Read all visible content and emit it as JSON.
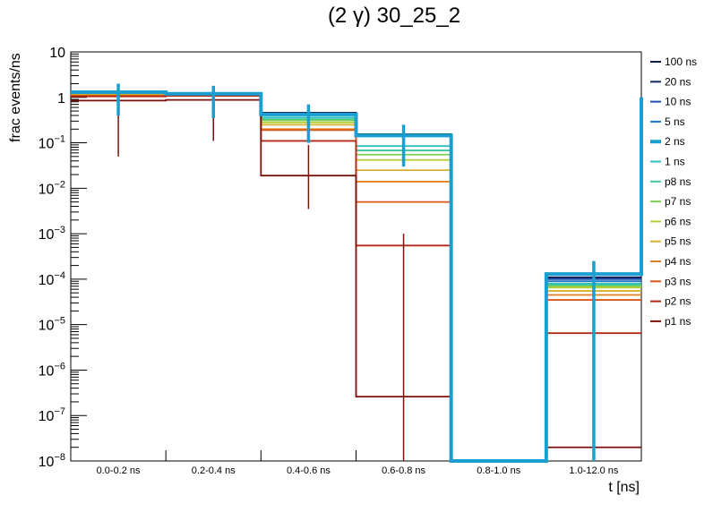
{
  "chart_data": {
    "type": "step-histogram",
    "title": "(2 γ) 30_25_2",
    "xlabel": "t [ns]",
    "ylabel": "frac events/ns",
    "yscale": "log",
    "ylim": [
      1e-08,
      10
    ],
    "y_tick_labels": [
      {
        "exp": -8,
        "text": "10",
        "sup": "−8"
      },
      {
        "exp": -7,
        "text": "10",
        "sup": "−7"
      },
      {
        "exp": -6,
        "text": "10",
        "sup": "−6"
      },
      {
        "exp": -5,
        "text": "10",
        "sup": "−5"
      },
      {
        "exp": -4,
        "text": "10",
        "sup": "−4"
      },
      {
        "exp": -3,
        "text": "10",
        "sup": "−3"
      },
      {
        "exp": -2,
        "text": "10",
        "sup": "−2"
      },
      {
        "exp": -1,
        "text": "10",
        "sup": "−1"
      },
      {
        "exp": 0,
        "text": "1",
        "sup": ""
      },
      {
        "exp": 1,
        "text": "10",
        "sup": ""
      }
    ],
    "categories": [
      "0.0-0.2 ns",
      "0.2-0.4 ns",
      "0.4-0.6 ns",
      "0.6-0.8 ns",
      "0.8-1.0 ns",
      "1.0-12.0 ns"
    ],
    "legend_position": "right",
    "series": [
      {
        "name": "100 ns",
        "color": "#0d1b4f",
        "values": [
          1.25,
          1.2,
          0.46,
          0.155,
          1e-08,
          0.00011
        ]
      },
      {
        "name": "20 ns",
        "color": "#14286e",
        "values": [
          1.25,
          1.2,
          0.45,
          0.152,
          1e-08,
          0.000105
        ]
      },
      {
        "name": "10 ns",
        "color": "#1f4fa8",
        "values": [
          1.25,
          1.2,
          0.44,
          0.15,
          1e-08,
          0.0001
        ]
      },
      {
        "name": "5 ns",
        "color": "#1e77c4",
        "values": [
          1.25,
          1.2,
          0.43,
          0.148,
          1e-08,
          9e-05
        ]
      },
      {
        "name": "2 ns",
        "color": "#1a9fd0",
        "values": [
          1.3,
          1.2,
          0.42,
          0.145,
          1e-08,
          0.00013
        ],
        "highlight": true,
        "err_low": [
          0.4,
          0.35,
          0.1,
          0.03,
          null,
          1e-08
        ],
        "err_high": [
          2.0,
          1.8,
          0.7,
          0.25,
          null,
          0.00025
        ]
      },
      {
        "name": "1 ns",
        "color": "#2fbfbf",
        "values": [
          1.2,
          1.18,
          0.36,
          0.085,
          1e-08,
          8e-05
        ]
      },
      {
        "name": "p8 ns",
        "color": "#3fc79a",
        "values": [
          1.18,
          1.17,
          0.33,
          0.068,
          1e-08,
          7.5e-05
        ]
      },
      {
        "name": "p7 ns",
        "color": "#7fcf55",
        "values": [
          1.17,
          1.16,
          0.31,
          0.055,
          1e-08,
          7e-05
        ]
      },
      {
        "name": "p6 ns",
        "color": "#b7cf3a",
        "values": [
          1.15,
          1.15,
          0.28,
          0.042,
          1e-08,
          6.5e-05
        ]
      },
      {
        "name": "p5 ns",
        "color": "#d8b22e",
        "values": [
          1.13,
          1.14,
          0.25,
          0.025,
          1e-08,
          5.5e-05
        ]
      },
      {
        "name": "p4 ns",
        "color": "#e0801f",
        "values": [
          1.1,
          1.12,
          0.2,
          0.014,
          1e-08,
          4.5e-05
        ]
      },
      {
        "name": "p3 ns",
        "color": "#d8561a",
        "values": [
          1.08,
          1.1,
          0.19,
          0.005,
          1e-08,
          3.5e-05
        ]
      },
      {
        "name": "p2 ns",
        "color": "#b22a16",
        "values": [
          1.05,
          1.08,
          0.11,
          0.00055,
          1e-08,
          6.5e-06
        ]
      },
      {
        "name": "p1 ns",
        "color": "#7a120c",
        "values": [
          0.85,
          0.88,
          0.019,
          2.6e-07,
          1e-08,
          2e-08
        ],
        "err_low": [
          0.05,
          0.11,
          0.0035,
          1e-08,
          null,
          1e-08
        ],
        "err_high": [
          1.6,
          1.6,
          0.09,
          0.001,
          null,
          1e-08
        ]
      }
    ]
  }
}
